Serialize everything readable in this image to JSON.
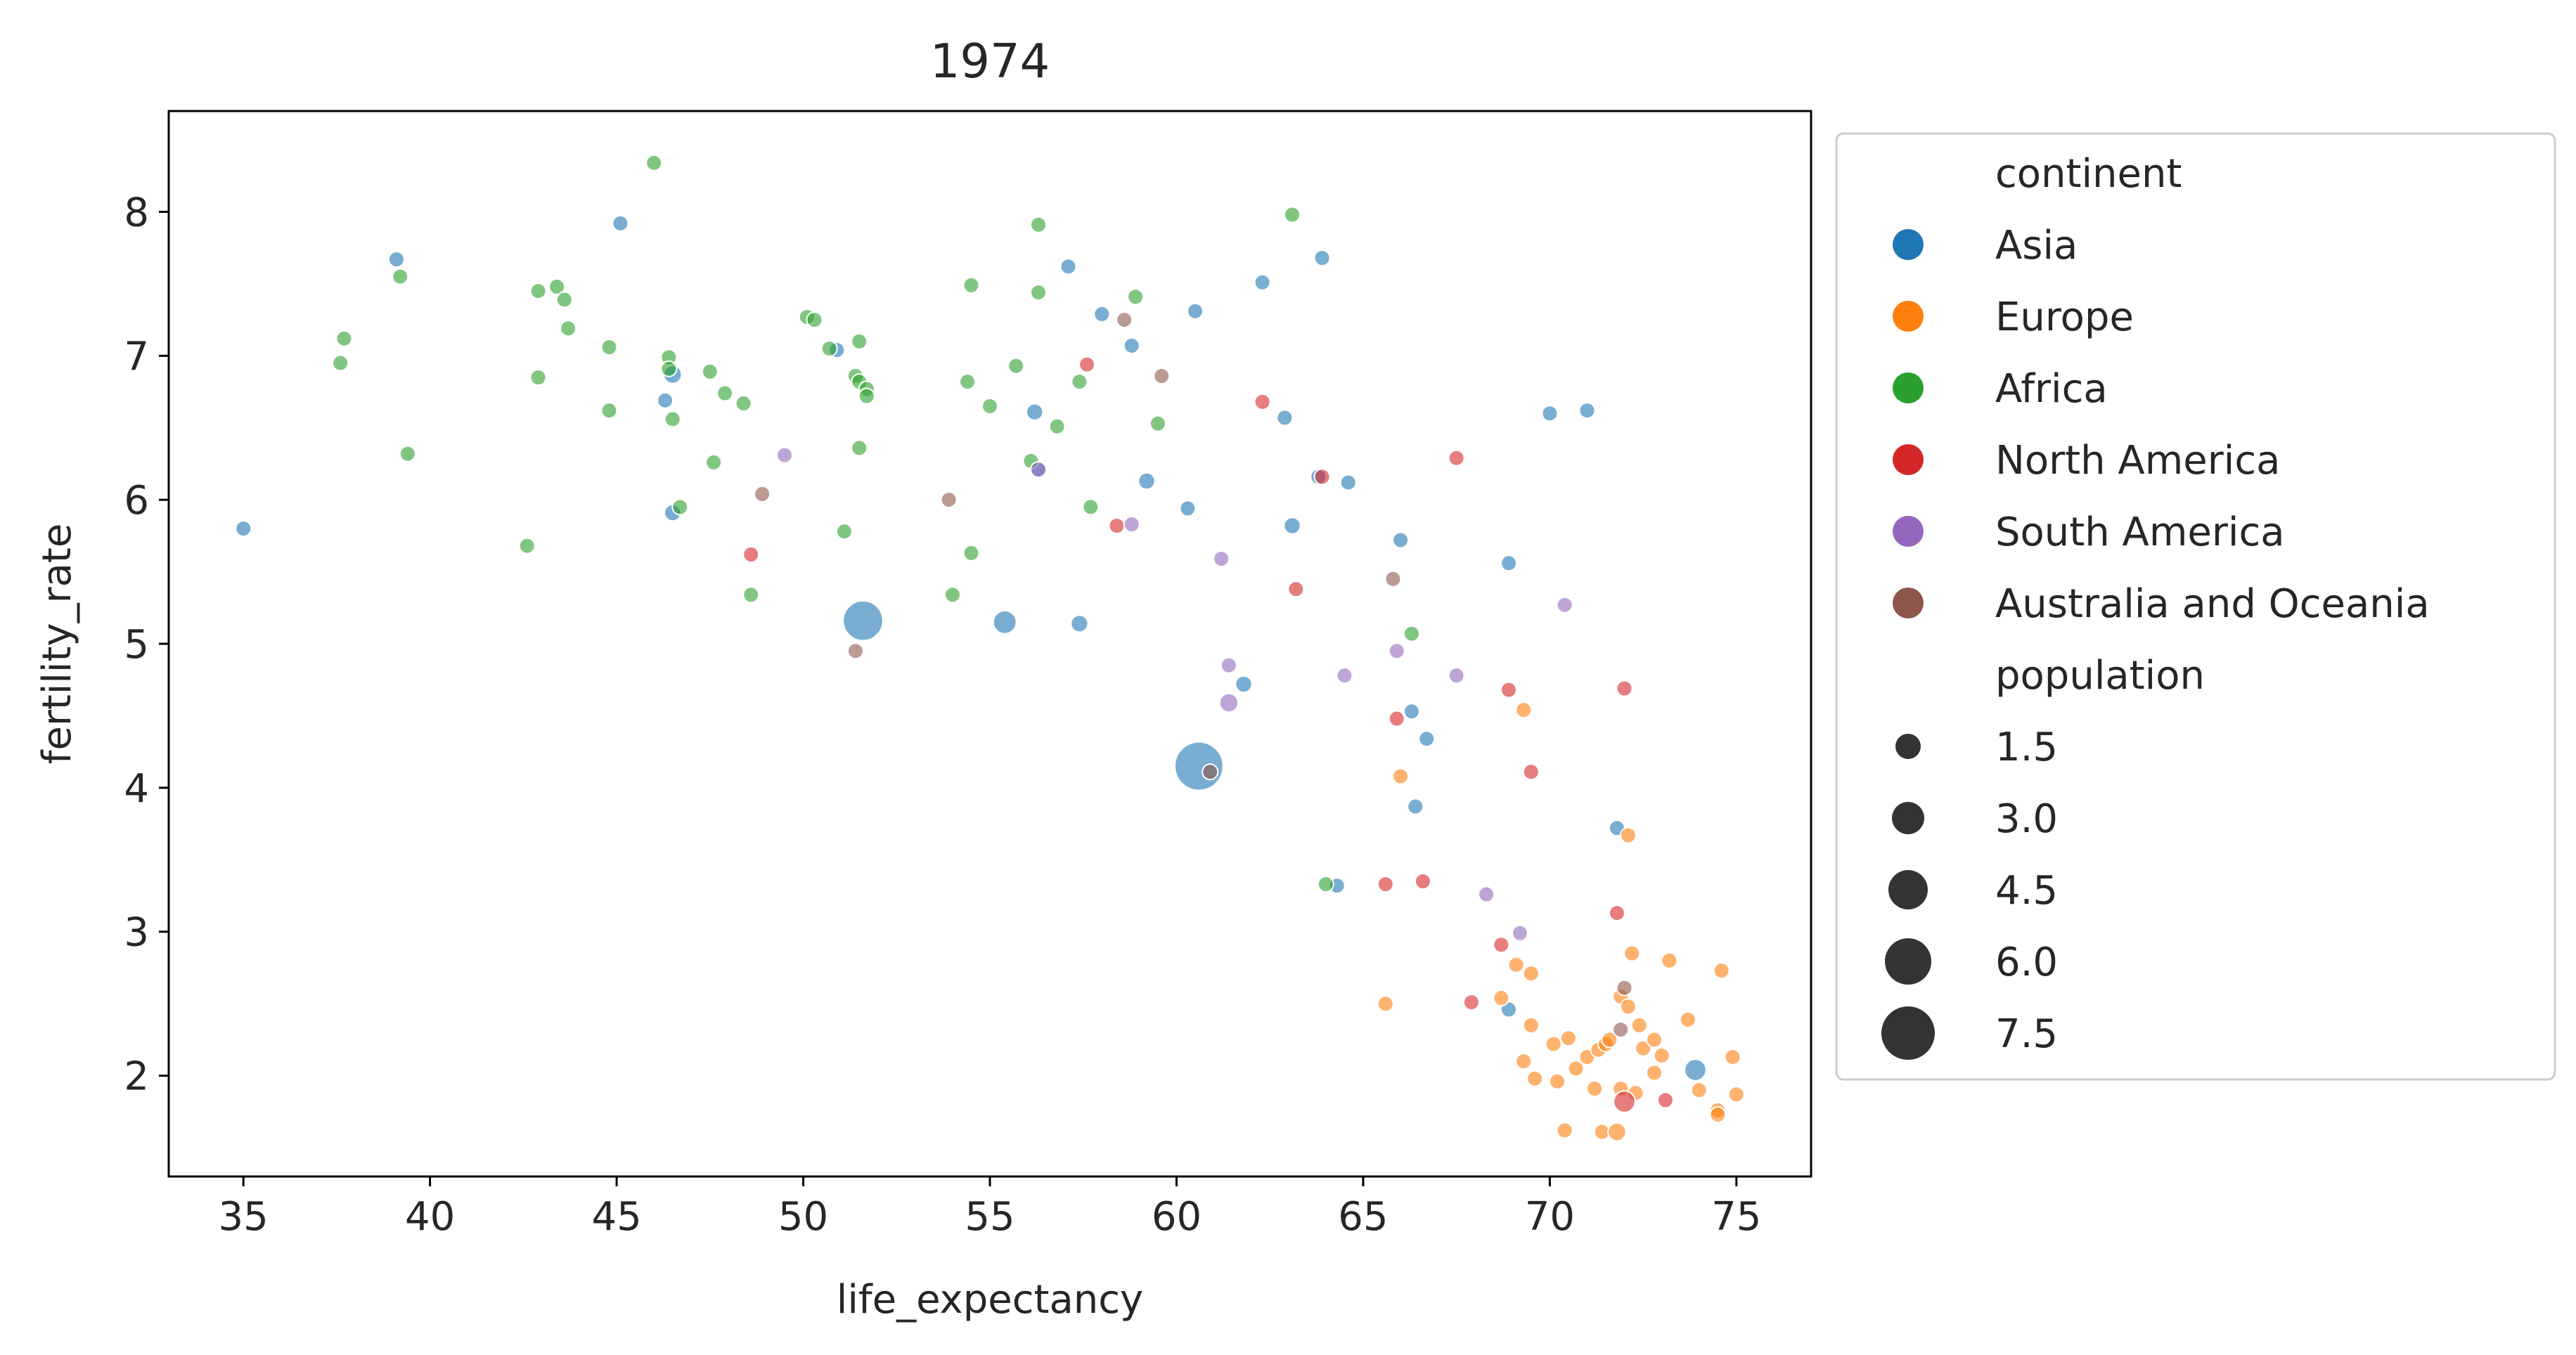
{
  "chart_data": {
    "type": "scatter",
    "title": "1974",
    "xlabel": "life_expectancy",
    "ylabel": "fertility_rate",
    "xlim": [
      33,
      77
    ],
    "ylim": [
      1.3,
      8.7
    ],
    "xticks": [
      35,
      40,
      45,
      50,
      55,
      60,
      65,
      70,
      75
    ],
    "yticks": [
      2,
      3,
      4,
      5,
      6,
      7,
      8
    ],
    "grid": false,
    "point_alpha": 0.6,
    "legend": {
      "placement": "outside-right",
      "hue_title": "continent",
      "size_title": "population",
      "size_entries": [
        {
          "label": "1.5",
          "value": 1.5
        },
        {
          "label": "3.0",
          "value": 3.0
        },
        {
          "label": "4.5",
          "value": 4.5
        },
        {
          "label": "6.0",
          "value": 6.0
        },
        {
          "label": "7.5",
          "value": 7.5
        }
      ]
    },
    "series": [
      {
        "name": "Asia",
        "color": "#1f77b4",
        "points": [
          [
            35.0,
            5.8,
            1
          ],
          [
            39.1,
            7.67,
            1
          ],
          [
            45.1,
            7.92,
            1
          ],
          [
            46.3,
            6.69,
            1
          ],
          [
            46.5,
            6.87,
            1.5
          ],
          [
            46.5,
            5.91,
            1.2
          ],
          [
            50.9,
            7.04,
            1
          ],
          [
            51.6,
            5.16,
            5.8
          ],
          [
            55.4,
            5.15,
            2.5
          ],
          [
            56.2,
            6.61,
            1.2
          ],
          [
            56.3,
            6.21,
            1
          ],
          [
            57.1,
            7.62,
            1
          ],
          [
            57.4,
            5.14,
            1.3
          ],
          [
            58.0,
            7.29,
            1
          ],
          [
            58.8,
            7.07,
            1
          ],
          [
            59.2,
            6.13,
            1.2
          ],
          [
            60.3,
            5.94,
            1
          ],
          [
            60.5,
            7.31,
            1
          ],
          [
            60.6,
            4.15,
            7.5
          ],
          [
            61.8,
            4.72,
            1.2
          ],
          [
            62.3,
            7.51,
            1
          ],
          [
            62.9,
            6.57,
            1
          ],
          [
            63.1,
            5.82,
            1.2
          ],
          [
            63.8,
            6.16,
            1
          ],
          [
            63.9,
            7.68,
            1
          ],
          [
            64.3,
            3.32,
            1
          ],
          [
            64.6,
            6.12,
            1
          ],
          [
            66.0,
            5.72,
            1
          ],
          [
            66.3,
            4.53,
            1
          ],
          [
            66.4,
            3.87,
            1
          ],
          [
            66.7,
            4.34,
            1
          ],
          [
            68.9,
            5.56,
            1
          ],
          [
            68.9,
            2.46,
            1
          ],
          [
            70.0,
            6.6,
            1
          ],
          [
            71.0,
            6.62,
            1
          ],
          [
            71.8,
            3.72,
            1
          ],
          [
            73.9,
            2.04,
            2.2
          ]
        ]
      },
      {
        "name": "Europe",
        "color": "#ff7f0e",
        "points": [
          [
            65.6,
            2.5,
            1
          ],
          [
            66.0,
            4.08,
            1
          ],
          [
            68.7,
            2.54,
            1
          ],
          [
            69.1,
            2.77,
            1
          ],
          [
            69.3,
            4.54,
            1
          ],
          [
            69.3,
            2.1,
            1
          ],
          [
            69.5,
            2.71,
            1
          ],
          [
            69.5,
            2.35,
            1
          ],
          [
            69.6,
            1.98,
            1
          ],
          [
            70.1,
            2.22,
            1
          ],
          [
            70.2,
            1.96,
            1
          ],
          [
            70.4,
            1.62,
            1
          ],
          [
            70.5,
            2.26,
            1
          ],
          [
            70.7,
            2.05,
            1
          ],
          [
            71.0,
            2.13,
            1
          ],
          [
            71.2,
            1.91,
            1
          ],
          [
            71.3,
            2.18,
            1
          ],
          [
            71.4,
            1.61,
            1
          ],
          [
            71.5,
            2.22,
            1
          ],
          [
            71.6,
            2.25,
            1
          ],
          [
            71.8,
            1.61,
            1.5
          ],
          [
            71.9,
            2.55,
            1
          ],
          [
            71.9,
            1.91,
            1
          ],
          [
            72.1,
            3.67,
            1
          ],
          [
            72.1,
            2.48,
            1
          ],
          [
            72.2,
            2.85,
            1
          ],
          [
            72.3,
            1.88,
            1
          ],
          [
            72.4,
            2.35,
            1
          ],
          [
            72.5,
            2.19,
            1
          ],
          [
            72.8,
            2.02,
            1
          ],
          [
            72.8,
            2.25,
            1
          ],
          [
            73.0,
            2.14,
            1
          ],
          [
            73.2,
            2.8,
            1
          ],
          [
            73.7,
            2.39,
            1
          ],
          [
            74.0,
            1.9,
            1
          ],
          [
            74.5,
            1.76,
            1
          ],
          [
            74.5,
            1.73,
            1
          ],
          [
            74.6,
            2.73,
            1
          ],
          [
            74.9,
            2.13,
            1
          ],
          [
            75.0,
            1.87,
            1
          ]
        ]
      },
      {
        "name": "Africa",
        "color": "#2ca02c",
        "points": [
          [
            37.6,
            6.95,
            1
          ],
          [
            37.7,
            7.12,
            1
          ],
          [
            39.2,
            7.55,
            1
          ],
          [
            39.4,
            6.32,
            1
          ],
          [
            42.6,
            5.68,
            1
          ],
          [
            42.9,
            7.45,
            1
          ],
          [
            42.9,
            6.85,
            1
          ],
          [
            43.4,
            7.48,
            1
          ],
          [
            43.6,
            7.39,
            1
          ],
          [
            43.7,
            7.19,
            1
          ],
          [
            44.8,
            7.06,
            1
          ],
          [
            44.8,
            6.62,
            1
          ],
          [
            46.0,
            8.34,
            1
          ],
          [
            46.4,
            6.99,
            1
          ],
          [
            46.4,
            6.91,
            1
          ],
          [
            46.5,
            6.56,
            1
          ],
          [
            46.7,
            5.95,
            1
          ],
          [
            47.5,
            6.89,
            1
          ],
          [
            47.6,
            6.26,
            1
          ],
          [
            47.9,
            6.74,
            1
          ],
          [
            48.4,
            6.67,
            1
          ],
          [
            48.6,
            5.34,
            1
          ],
          [
            50.1,
            7.27,
            1
          ],
          [
            50.3,
            7.25,
            1
          ],
          [
            50.7,
            7.05,
            1
          ],
          [
            51.1,
            5.78,
            1
          ],
          [
            51.4,
            6.86,
            1
          ],
          [
            51.5,
            7.1,
            1
          ],
          [
            51.5,
            6.82,
            1
          ],
          [
            51.5,
            6.36,
            1
          ],
          [
            51.7,
            6.77,
            1
          ],
          [
            51.7,
            6.72,
            1
          ],
          [
            54.0,
            5.34,
            1
          ],
          [
            54.4,
            6.82,
            1
          ],
          [
            54.5,
            7.49,
            1
          ],
          [
            54.5,
            5.63,
            1
          ],
          [
            55.0,
            6.65,
            1
          ],
          [
            55.7,
            6.93,
            1
          ],
          [
            56.1,
            6.27,
            1
          ],
          [
            56.3,
            7.44,
            1
          ],
          [
            56.3,
            7.91,
            1
          ],
          [
            56.8,
            6.51,
            1
          ],
          [
            57.4,
            6.82,
            1
          ],
          [
            57.7,
            5.95,
            1
          ],
          [
            58.9,
            7.41,
            1
          ],
          [
            59.5,
            6.53,
            1
          ],
          [
            63.1,
            7.98,
            1
          ],
          [
            64.0,
            3.33,
            1
          ],
          [
            66.3,
            5.07,
            1
          ]
        ]
      },
      {
        "name": "North America",
        "color": "#d62728",
        "points": [
          [
            48.6,
            5.62,
            1
          ],
          [
            57.6,
            6.94,
            1
          ],
          [
            58.4,
            5.82,
            1
          ],
          [
            62.3,
            6.68,
            1
          ],
          [
            63.2,
            5.38,
            1
          ],
          [
            63.9,
            6.16,
            1
          ],
          [
            65.6,
            3.33,
            1
          ],
          [
            65.9,
            4.48,
            1
          ],
          [
            66.6,
            3.35,
            1
          ],
          [
            67.5,
            6.29,
            1
          ],
          [
            67.9,
            2.51,
            1
          ],
          [
            68.7,
            2.91,
            1
          ],
          [
            68.9,
            4.68,
            1
          ],
          [
            69.5,
            4.11,
            1
          ],
          [
            71.8,
            3.13,
            1
          ],
          [
            72.0,
            4.69,
            1
          ],
          [
            72.0,
            1.82,
            2.2
          ],
          [
            73.1,
            1.83,
            1
          ]
        ]
      },
      {
        "name": "South America",
        "color": "#9467bd",
        "points": [
          [
            49.5,
            6.31,
            1
          ],
          [
            56.3,
            6.21,
            1
          ],
          [
            58.8,
            5.83,
            1
          ],
          [
            61.2,
            5.59,
            1
          ],
          [
            61.4,
            4.85,
            1
          ],
          [
            61.4,
            4.59,
            1.6
          ],
          [
            64.5,
            4.78,
            1
          ],
          [
            65.9,
            4.95,
            1
          ],
          [
            67.5,
            4.78,
            1
          ],
          [
            68.3,
            3.26,
            1
          ],
          [
            69.2,
            2.99,
            1
          ],
          [
            70.4,
            5.27,
            1
          ]
        ]
      },
      {
        "name": "Australia and Oceania",
        "color": "#8c564b",
        "points": [
          [
            48.9,
            6.04,
            1
          ],
          [
            51.4,
            4.95,
            1
          ],
          [
            53.9,
            6.0,
            1
          ],
          [
            58.6,
            7.25,
            1
          ],
          [
            59.6,
            6.86,
            1
          ],
          [
            60.9,
            4.11,
            1
          ],
          [
            65.8,
            5.45,
            1
          ],
          [
            71.9,
            2.32,
            1
          ],
          [
            72.0,
            2.61,
            1
          ]
        ]
      }
    ]
  }
}
